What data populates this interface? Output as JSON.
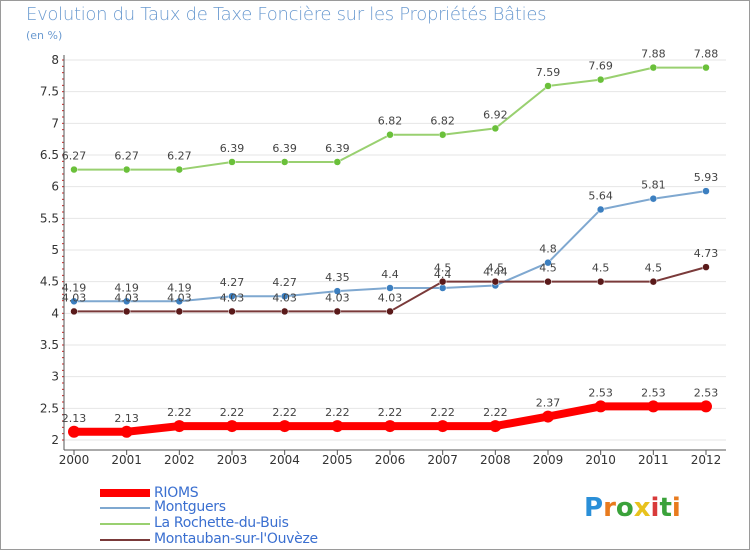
{
  "title": "Evolution du Taux de Taxe Foncière sur les Propriétés Bâties",
  "subtitle": "(en %)",
  "colors": {
    "title": "#6a9ad0",
    "grid": "#e6e6e6",
    "axis": "#555555",
    "tick_minor": "#d02020"
  },
  "chart_data": {
    "type": "line",
    "title": "Evolution du Taux de Taxe Foncière sur les Propriétés Bâties",
    "ylabel": "(en %)",
    "xlabel": "",
    "x": [
      "2000",
      "2001",
      "2002",
      "2003",
      "2004",
      "2005",
      "2006",
      "2007",
      "2008",
      "2009",
      "2010",
      "2011",
      "2012"
    ],
    "ylim": [
      2,
      8
    ],
    "yticks": [
      "2",
      "2.5",
      "3",
      "3.5",
      "4",
      "4.5",
      "5",
      "5.5",
      "6",
      "6.5",
      "7",
      "7.5",
      "8"
    ],
    "grid": true,
    "legend_position": "bottom-left",
    "series": [
      {
        "name": "RIOMS",
        "color": "#ff0000",
        "marker": "#ff0000",
        "width": 8,
        "values": [
          2.13,
          2.13,
          2.22,
          2.22,
          2.22,
          2.22,
          2.22,
          2.22,
          2.22,
          2.37,
          2.53,
          2.53,
          2.53
        ],
        "labels": [
          "2.13",
          "2.13",
          "2.22",
          "2.22",
          "2.22",
          "2.22",
          "2.22",
          "2.22",
          "2.22",
          "2.37",
          "2.53",
          "2.53",
          "2.53"
        ]
      },
      {
        "name": "Montguers",
        "color": "#7fa8d0",
        "marker": "#3c7fc0",
        "width": 2,
        "values": [
          4.19,
          4.19,
          4.19,
          4.27,
          4.27,
          4.35,
          4.4,
          4.4,
          4.44,
          4.8,
          5.64,
          5.81,
          5.93
        ],
        "labels": [
          "4.19",
          "4.19",
          "4.19",
          "4.27",
          "4.27",
          "4.35",
          "4.4",
          "4.4",
          "4.44",
          "4.8",
          "5.64",
          "5.81",
          "5.93"
        ]
      },
      {
        "name": "La Rochette-du-Buis",
        "color": "#99d070",
        "marker": "#6ac03a",
        "width": 2,
        "values": [
          6.27,
          6.27,
          6.27,
          6.39,
          6.39,
          6.39,
          6.82,
          6.82,
          6.92,
          7.59,
          7.69,
          7.88,
          7.88
        ],
        "labels": [
          "6.27",
          "6.27",
          "6.27",
          "6.39",
          "6.39",
          "6.39",
          "6.82",
          "6.82",
          "6.92",
          "7.59",
          "7.69",
          "7.88",
          "7.88"
        ]
      },
      {
        "name": "Montauban-sur-l'Ouvèze",
        "color": "#7a3a3a",
        "marker": "#5a1a1a",
        "width": 2,
        "values": [
          4.03,
          4.03,
          4.03,
          4.03,
          4.03,
          4.03,
          4.03,
          4.5,
          4.5,
          4.5,
          4.5,
          4.5,
          4.73
        ],
        "labels": [
          "4.03",
          "4.03",
          "4.03",
          "4.03",
          "4.03",
          "4.03",
          "4.03",
          "4.5",
          "4.5",
          "4.5",
          "4.5",
          "4.5",
          "4.73"
        ]
      }
    ]
  },
  "legend": {
    "items": [
      "RIOMS",
      "Montguers",
      "La Rochette-du-Buis",
      "Montauban-sur-l'Ouvèze"
    ]
  },
  "logo": {
    "letters": [
      "P",
      "r",
      "o",
      "x",
      "i",
      "t",
      "i"
    ],
    "colors": [
      "#2a8fd8",
      "#e87b1e",
      "#3aa23a",
      "#e8c21e",
      "#d83a3a",
      "#3aa23a",
      "#e87b1e"
    ]
  }
}
